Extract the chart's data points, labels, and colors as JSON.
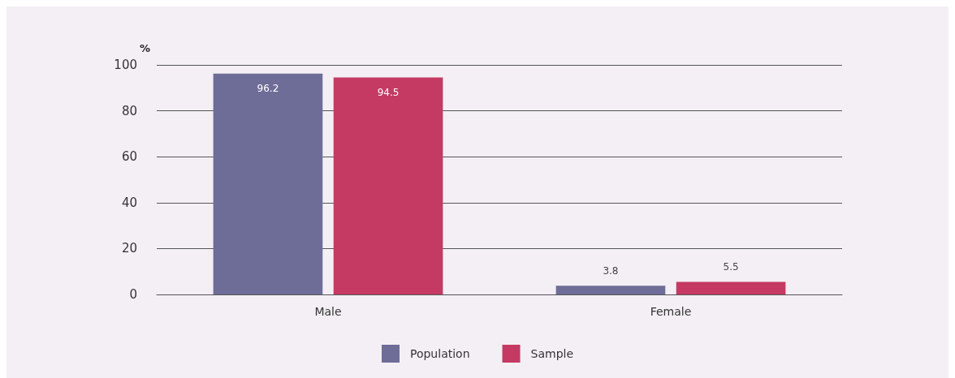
{
  "chart_data": {
    "type": "bar",
    "ylabel": "%",
    "categories": [
      "Male",
      "Female"
    ],
    "series": [
      {
        "name": "Population",
        "color": "#6e6d98",
        "values": [
          96.2,
          3.8
        ]
      },
      {
        "name": "Sample",
        "color": "#c43a63",
        "values": [
          94.5,
          5.5
        ]
      }
    ],
    "ylim": [
      0,
      100
    ],
    "yticks": [
      0,
      20,
      40,
      60,
      80,
      100
    ],
    "grid": "y",
    "legend": "bottom",
    "data_labels": true
  }
}
